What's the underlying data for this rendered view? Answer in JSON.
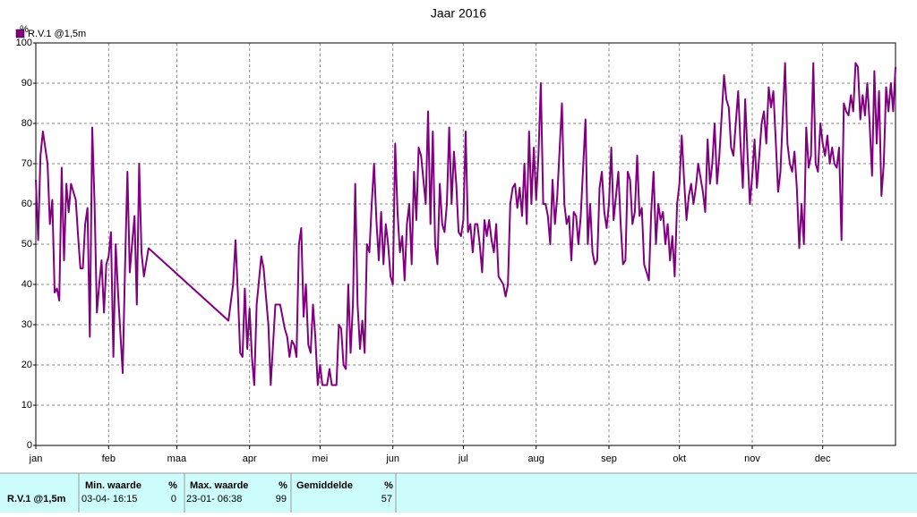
{
  "chart_data": {
    "type": "line",
    "title": "Jaar 2016",
    "y_label": "%",
    "xlim": [
      0,
      366
    ],
    "xticks": [
      {
        "value": 0,
        "label": "jan"
      },
      {
        "value": 31,
        "label": "feb"
      },
      {
        "value": 60,
        "label": "maa"
      },
      {
        "value": 91,
        "label": "apr"
      },
      {
        "value": 121,
        "label": "mei"
      },
      {
        "value": 152,
        "label": "jun"
      },
      {
        "value": 182,
        "label": "jul"
      },
      {
        "value": 213,
        "label": "aug"
      },
      {
        "value": 244,
        "label": "sep"
      },
      {
        "value": 274,
        "label": "okt"
      },
      {
        "value": 305,
        "label": "nov"
      },
      {
        "value": 335,
        "label": "dec"
      }
    ],
    "ylim": [
      0,
      100
    ],
    "yticks": [
      0,
      10,
      20,
      30,
      40,
      50,
      60,
      70,
      80,
      90,
      100
    ],
    "grid": true,
    "legend": "top-left",
    "x": [
      0,
      1,
      2,
      3,
      5,
      6,
      7,
      8,
      9,
      10,
      11,
      12,
      13,
      14,
      15,
      17,
      18,
      19,
      20,
      21,
      22,
      23,
      24,
      25,
      26,
      27,
      28,
      29,
      30,
      31,
      32,
      33,
      34,
      35,
      37,
      38,
      39,
      40,
      41,
      42,
      43,
      44,
      45,
      46,
      48,
      82,
      84,
      85,
      86,
      87,
      88,
      89,
      90,
      91,
      92,
      93,
      94,
      96,
      97,
      98,
      99,
      100,
      101,
      102,
      104,
      106,
      107,
      108,
      109,
      110,
      111,
      112,
      113,
      114,
      115,
      116,
      117,
      118,
      119,
      120,
      121,
      122,
      124,
      125,
      126,
      128,
      129,
      130,
      131,
      132,
      133,
      134,
      135,
      136,
      137,
      138,
      139,
      140,
      141,
      142,
      143,
      144,
      145,
      146,
      147,
      148,
      149,
      150,
      151,
      152,
      153,
      154,
      155,
      156,
      157,
      158,
      159,
      160,
      161,
      162,
      163,
      164,
      166,
      167,
      168,
      169,
      170,
      171,
      172,
      173,
      174,
      175,
      176,
      177,
      178,
      179,
      180,
      181,
      182,
      183,
      184,
      185,
      186,
      187,
      188,
      189,
      190,
      191,
      192,
      193,
      194,
      195,
      196,
      197,
      199,
      200,
      201,
      202,
      203,
      204,
      205,
      206,
      207,
      208,
      209,
      210,
      211,
      212,
      213,
      214,
      215,
      216,
      217,
      218,
      219,
      220,
      221,
      222,
      224,
      225,
      226,
      227,
      228,
      229,
      230,
      231,
      232,
      234,
      235,
      236,
      237,
      238,
      239,
      240,
      241,
      242,
      243,
      244,
      245,
      246,
      247,
      248,
      249,
      250,
      251,
      252,
      253,
      254,
      255,
      256,
      257,
      258,
      259,
      260,
      261,
      262,
      263,
      264,
      265,
      266,
      267,
      268,
      269,
      270,
      271,
      272,
      273,
      274,
      275,
      276,
      277,
      278,
      279,
      280,
      281,
      282,
      284,
      285,
      286,
      287,
      288,
      289,
      290,
      291,
      293,
      294,
      295,
      296,
      297,
      298,
      299,
      300,
      301,
      302,
      303,
      304,
      305,
      306,
      307,
      308,
      309,
      310,
      311,
      312,
      313,
      314,
      315,
      316,
      317,
      319,
      320,
      321,
      322,
      323,
      324,
      325,
      326,
      327,
      328,
      329,
      330,
      331,
      332,
      333,
      334,
      335,
      336,
      337,
      338,
      339,
      340,
      341,
      342,
      343,
      344,
      345,
      346,
      347,
      348,
      349,
      350,
      351,
      352,
      353,
      354,
      355,
      356,
      357,
      358,
      359,
      360,
      361,
      362,
      363,
      364,
      365,
      366
    ],
    "series": [
      {
        "name": "R.V.1 @1,5m",
        "color": "#800080",
        "values": [
          66,
          51,
          72,
          78,
          70,
          55,
          61,
          38,
          39,
          36,
          69,
          46,
          65,
          58,
          65,
          61,
          52,
          44,
          44,
          55,
          59,
          27,
          79,
          60,
          33,
          40,
          46,
          33,
          45,
          47,
          53,
          22,
          50,
          38,
          18,
          45,
          68,
          43,
          50,
          57,
          35,
          70,
          48,
          42,
          49,
          31,
          40,
          51,
          38,
          23,
          22,
          39,
          24,
          34,
          22,
          15,
          35,
          47,
          44,
          37,
          30,
          15,
          25,
          35,
          35,
          29,
          27,
          22,
          26,
          25,
          22,
          50,
          54,
          32,
          40,
          25,
          23,
          35,
          27,
          15,
          20,
          15,
          15,
          19,
          15,
          15,
          30,
          29,
          20,
          19,
          40,
          23,
          35,
          65,
          35,
          24,
          31,
          23,
          50,
          48,
          60,
          70,
          56,
          46,
          58,
          45,
          55,
          50,
          42,
          40,
          75,
          58,
          48,
          52,
          41,
          55,
          60,
          45,
          68,
          56,
          74,
          72,
          60,
          83,
          55,
          78,
          50,
          45,
          65,
          55,
          53,
          60,
          79,
          60,
          73,
          65,
          53,
          52,
          56,
          78,
          53,
          55,
          48,
          55,
          55,
          50,
          43,
          56,
          52,
          56,
          51,
          48,
          55,
          42,
          40,
          37,
          40,
          60,
          64,
          65,
          59,
          64,
          57,
          70,
          55,
          78,
          60,
          74,
          61,
          72,
          90,
          60,
          60,
          57,
          50,
          66,
          55,
          62,
          85,
          60,
          55,
          57,
          46,
          58,
          57,
          50,
          57,
          81,
          50,
          60,
          48,
          45,
          46,
          64,
          68,
          58,
          54,
          60,
          74,
          56,
          62,
          68,
          55,
          45,
          46,
          68,
          66,
          55,
          58,
          72,
          57,
          59,
          45,
          43,
          41,
          58,
          68,
          50,
          60,
          56,
          58,
          50,
          55,
          46,
          52,
          42,
          60,
          65,
          77,
          66,
          56,
          62,
          65,
          60,
          64,
          70,
          63,
          58,
          76,
          65,
          70,
          80,
          65,
          72,
          92,
          86,
          84,
          74,
          72,
          80,
          88,
          75,
          64,
          86,
          72,
          60,
          67,
          76,
          64,
          72,
          80,
          83,
          75,
          89,
          84,
          88,
          76,
          63,
          68,
          95,
          75,
          70,
          68,
          73,
          64,
          49,
          60,
          50,
          79,
          69,
          72,
          95,
          70,
          68,
          80,
          75,
          72,
          77,
          70,
          74,
          70,
          69,
          74,
          51,
          85,
          83,
          82,
          87,
          83,
          95,
          94,
          81,
          87,
          82,
          90,
          80,
          67,
          93,
          75,
          88,
          62,
          70,
          89,
          83,
          90,
          83,
          94
        ]
      }
    ]
  },
  "table": {
    "columns": [
      {
        "label": "Min. waarde",
        "unit": "%"
      },
      {
        "label": "Max. waarde",
        "unit": "%"
      },
      {
        "label": "Gemiddelde",
        "unit": "%"
      }
    ],
    "rows": [
      {
        "name": "R.V.1 @1,5m",
        "cells": [
          {
            "time": "03-04- 16:15",
            "value": 0
          },
          {
            "time": "23-01- 06:38",
            "value": 99
          },
          {
            "time": null,
            "value": 57
          }
        ]
      }
    ]
  }
}
